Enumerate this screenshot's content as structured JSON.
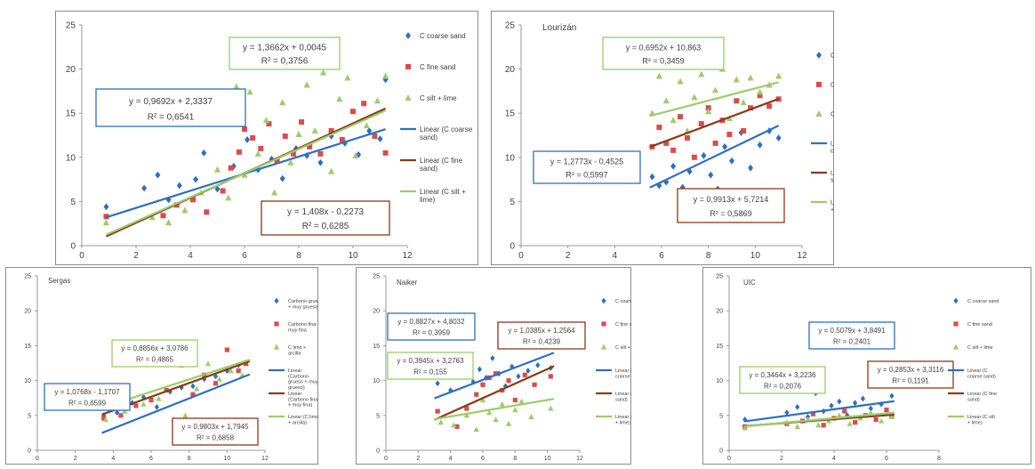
{
  "chart_data": [
    {
      "type": "scatter",
      "title": "",
      "xlim": [
        0,
        12
      ],
      "ylim": [
        0,
        25
      ],
      "xticks": [
        0,
        2,
        4,
        6,
        8,
        10,
        12
      ],
      "yticks": [
        0,
        5,
        10,
        15,
        20,
        25
      ],
      "series": [
        {
          "name": "C coarse sand",
          "color": "#2e6fc1",
          "marker": "diamond",
          "x": [
            0.9,
            2.3,
            2.8,
            3.2,
            3.6,
            4.2,
            4.5,
            5.0,
            5.6,
            6.1,
            6.5,
            7.0,
            7.4,
            7.9,
            8.3,
            8.8,
            9.2,
            9.7,
            10.2,
            10.6,
            11.0,
            11.2
          ],
          "y": [
            4.4,
            6.5,
            8.0,
            5.2,
            6.8,
            7.5,
            10.5,
            6.4,
            9.0,
            12.0,
            8.6,
            9.8,
            7.6,
            11.0,
            10.2,
            9.4,
            12.4,
            11.6,
            10.3,
            13.0,
            12.1,
            18.8
          ]
        },
        {
          "name": "C fine sand",
          "color": "#d94c4c",
          "marker": "square",
          "x": [
            0.9,
            3.0,
            3.5,
            4.1,
            4.6,
            5.2,
            5.5,
            5.8,
            6.0,
            6.3,
            6.6,
            6.9,
            7.2,
            7.5,
            7.8,
            8.1,
            8.4,
            8.8,
            9.2,
            9.6,
            10.0,
            10.4,
            10.8,
            11.2
          ],
          "y": [
            3.3,
            3.4,
            4.6,
            5.2,
            3.8,
            6.2,
            8.8,
            10.6,
            13.2,
            12.2,
            11.0,
            13.8,
            9.6,
            12.4,
            10.4,
            14.0,
            11.2,
            10.4,
            13.0,
            12.0,
            15.2,
            16.1,
            12.4,
            10.5
          ]
        },
        {
          "name": "C silt + lime",
          "color": "#9ccc6a",
          "marker": "triangle",
          "x": [
            0.9,
            2.6,
            3.2,
            3.8,
            4.4,
            5.0,
            5.4,
            5.7,
            6.0,
            6.2,
            6.5,
            6.8,
            7.1,
            7.4,
            7.7,
            8.0,
            8.3,
            8.6,
            8.9,
            9.2,
            9.5,
            9.8,
            10.1,
            10.5,
            10.9,
            11.2
          ],
          "y": [
            2.6,
            3.2,
            2.6,
            4.0,
            6.0,
            8.6,
            5.4,
            18.0,
            8.0,
            17.4,
            10.4,
            14.2,
            6.0,
            16.2,
            9.4,
            12.6,
            18.2,
            13.0,
            19.6,
            8.4,
            16.6,
            19.0,
            10.2,
            13.6,
            16.4,
            19.2
          ]
        },
        {
          "name": "Linear (C coarse sand)",
          "color": "#2e6fc1",
          "line": true,
          "slope": 0.9692,
          "intercept": 2.3337,
          "x_range": [
            0.9,
            11.2
          ]
        },
        {
          "name": "Linear (C fine sand)",
          "color": "#8b3a17",
          "line": true,
          "slope": 1.408,
          "intercept": -0.2273,
          "x_range": [
            0.9,
            11.2
          ]
        },
        {
          "name": "Linear (C silt + lime)",
          "color": "#9ccc6a",
          "line": true,
          "slope": 1.3662,
          "intercept": 0.0045,
          "x_range": [
            0.9,
            11.2
          ]
        }
      ],
      "equations": [
        {
          "line1": "y = 0,9692x + 2,3337",
          "line2": "R² = 0,6541",
          "color": "#2e6fc1"
        },
        {
          "line1": "y = 1,3662x + 0,0045",
          "line2": "R² = 0,3756",
          "color": "#9ccc6a"
        },
        {
          "line1": "y = 1,408x - 0,2273",
          "line2": "R² = 0,6285",
          "color": "#8b3a17"
        }
      ]
    },
    {
      "type": "scatter",
      "title": "Lourizán",
      "xlim": [
        0,
        12
      ],
      "ylim": [
        0,
        25
      ],
      "xticks": [
        0,
        2,
        4,
        6,
        8,
        10,
        12
      ],
      "yticks": [
        0,
        5,
        10,
        15,
        20,
        25
      ],
      "series": [
        {
          "name": "C coarse sand",
          "color": "#2e6fc1",
          "marker": "diamond",
          "x": [
            5.6,
            5.9,
            6.2,
            6.5,
            6.9,
            7.2,
            7.5,
            7.8,
            8.1,
            8.4,
            8.7,
            9.0,
            9.4,
            9.8,
            10.2,
            10.6,
            11.0
          ],
          "y": [
            7.8,
            6.8,
            7.2,
            9.0,
            6.6,
            8.4,
            5.4,
            10.2,
            8.0,
            6.4,
            11.2,
            9.6,
            12.8,
            8.8,
            11.4,
            13.0,
            12.2
          ]
        },
        {
          "name": "C fine sand",
          "color": "#d94c4c",
          "marker": "square",
          "x": [
            5.6,
            5.9,
            6.2,
            6.5,
            6.8,
            7.1,
            7.4,
            7.7,
            8.0,
            8.3,
            8.6,
            8.9,
            9.2,
            9.5,
            9.8,
            10.2,
            10.6,
            11.0
          ],
          "y": [
            11.2,
            13.4,
            11.6,
            10.8,
            14.6,
            12.2,
            10.0,
            13.8,
            15.6,
            11.6,
            14.2,
            12.6,
            16.4,
            13.0,
            15.6,
            17.0,
            15.8,
            16.6
          ]
        },
        {
          "name": "C silt + lime",
          "color": "#9ccc6a",
          "marker": "triangle",
          "x": [
            5.6,
            5.9,
            6.2,
            6.5,
            6.8,
            7.1,
            7.4,
            7.7,
            8.0,
            8.3,
            8.6,
            8.9,
            9.2,
            9.5,
            9.8,
            10.2,
            10.6,
            11.0
          ],
          "y": [
            15.0,
            19.2,
            16.4,
            14.2,
            18.6,
            13.0,
            16.8,
            19.4,
            15.2,
            17.6,
            20.0,
            14.4,
            18.8,
            16.2,
            19.0,
            17.4,
            18.2,
            19.2
          ]
        },
        {
          "name": "Linear (C coarse sand)",
          "color": "#2e6fc1",
          "line": true,
          "slope": 1.2773,
          "intercept": -0.4525,
          "x_range": [
            5.5,
            11.0
          ]
        },
        {
          "name": "Linear (C fine sand)",
          "color": "#8b3a17",
          "line": true,
          "slope": 0.9913,
          "intercept": 5.7214,
          "x_range": [
            5.5,
            11.0
          ]
        },
        {
          "name": "Linear (C silt + lime)",
          "color": "#9ccc6a",
          "line": true,
          "slope": 0.6952,
          "intercept": 10.863,
          "x_range": [
            5.5,
            11.0
          ]
        }
      ],
      "equations": [
        {
          "line1": "y = 0,6952x + 10,863",
          "line2": "R² = 0,3459",
          "color": "#9ccc6a"
        },
        {
          "line1": "y = 1,2773x - 0,4525",
          "line2": "R² = 0,5997",
          "color": "#2e6fc1"
        },
        {
          "line1": "y = 0,9913x + 5,7214",
          "line2": "R² = 0,5869",
          "color": "#8b3a17"
        }
      ]
    },
    {
      "type": "scatter",
      "title": "Sergas",
      "xlim": [
        0,
        12
      ],
      "ylim": [
        0,
        25
      ],
      "xticks": [
        0,
        2,
        4,
        6,
        8,
        10,
        12
      ],
      "yticks": [
        0,
        5,
        10,
        15,
        20,
        25
      ],
      "series": [
        {
          "name": "Carbono grueso + muy grueso",
          "color": "#2e6fc1",
          "marker": "diamond",
          "x": [
            3.5,
            4.2,
            5.0,
            5.6,
            6.3,
            7.0,
            7.6,
            8.2,
            8.8,
            9.4,
            10.0,
            10.6,
            11.0
          ],
          "y": [
            5.0,
            5.4,
            6.8,
            7.6,
            6.2,
            8.4,
            9.0,
            9.2,
            10.2,
            10.6,
            11.4,
            12.2,
            12.6
          ]
        },
        {
          "name": "Carbono fina + muy fina",
          "color": "#d94c4c",
          "marker": "square",
          "x": [
            3.5,
            4.4,
            5.2,
            6.0,
            6.8,
            7.6,
            8.2,
            8.8,
            9.4,
            10.0,
            10.6,
            11.0
          ],
          "y": [
            4.6,
            5.0,
            6.4,
            7.2,
            8.6,
            12.2,
            8.0,
            10.8,
            9.6,
            14.4,
            11.4,
            12.4
          ]
        },
        {
          "name": "C limo + arcilla",
          "color": "#9ccc6a",
          "marker": "triangle",
          "x": [
            3.6,
            4.6,
            5.6,
            6.4,
            7.2,
            7.8,
            8.4,
            9.0,
            9.6,
            10.2,
            10.8
          ],
          "y": [
            4.4,
            5.6,
            6.6,
            7.4,
            4.4,
            5.0,
            8.8,
            12.4,
            10.2,
            11.4,
            10.8
          ]
        },
        {
          "name": "Linear (Carbono grueso + muy grueso)",
          "color": "#2e6fc1",
          "line": true,
          "slope": 1.0768,
          "intercept": -1.1707,
          "x_range": [
            3.4,
            11.2
          ]
        },
        {
          "name": "Linear (Carbono fina + muy fina)",
          "color": "#8b3a17",
          "line": true,
          "slope": 0.9803,
          "intercept": 1.7945,
          "x_range": [
            3.4,
            11.2
          ]
        },
        {
          "name": "Linear (C limo + arcilla)",
          "color": "#9ccc6a",
          "line": true,
          "slope": 0.8856,
          "intercept": 3.0786,
          "x_range": [
            3.4,
            11.2
          ]
        }
      ],
      "equations": [
        {
          "line1": "y = 0,8856x + 3,0786",
          "line2": "R² = 0,4865",
          "color": "#9ccc6a"
        },
        {
          "line1": "y = 1,0768x - 1,1707",
          "line2": "R² = 0,6599",
          "color": "#2e6fc1"
        },
        {
          "line1": "y = 0,9803x + 1,7945",
          "line2": "R² = 0,6858",
          "color": "#8b3a17"
        }
      ]
    },
    {
      "type": "scatter",
      "title": "Naiker",
      "xlim": [
        0,
        12
      ],
      "ylim": [
        0,
        25
      ],
      "xticks": [
        0,
        2,
        4,
        6,
        8,
        10,
        12
      ],
      "yticks": [
        0,
        5,
        10,
        15,
        20,
        25
      ],
      "series": [
        {
          "name": "C coarse sand",
          "color": "#2e6fc1",
          "marker": "diamond",
          "x": [
            3.2,
            4.0,
            4.6,
            5.0,
            5.4,
            5.8,
            6.2,
            6.6,
            7.0,
            7.4,
            7.8,
            8.2,
            8.8,
            9.4,
            10.2
          ],
          "y": [
            9.6,
            8.6,
            10.8,
            12.6,
            9.8,
            11.6,
            10.4,
            13.2,
            11.0,
            9.2,
            12.0,
            10.6,
            11.4,
            12.2,
            11.8
          ]
        },
        {
          "name": "C fine sand",
          "color": "#d94c4c",
          "marker": "square",
          "x": [
            3.2,
            4.4,
            5.0,
            5.6,
            6.0,
            6.4,
            6.8,
            7.2,
            7.6,
            8.0,
            8.6,
            9.2,
            10.2
          ],
          "y": [
            5.6,
            3.4,
            6.0,
            8.0,
            9.4,
            10.4,
            11.0,
            8.6,
            10.0,
            7.2,
            10.8,
            9.4,
            10.6
          ]
        },
        {
          "name": "C silt + lime",
          "color": "#9ccc6a",
          "marker": "triangle",
          "x": [
            3.4,
            4.2,
            5.0,
            5.6,
            6.0,
            6.4,
            6.8,
            7.2,
            7.6,
            8.0,
            8.4,
            9.0,
            10.2
          ],
          "y": [
            4.0,
            3.6,
            5.0,
            3.0,
            7.2,
            5.4,
            4.4,
            6.6,
            3.8,
            5.8,
            7.0,
            4.8,
            6.0
          ]
        },
        {
          "name": "Linear (C coarse sand)",
          "color": "#2e6fc1",
          "line": true,
          "slope": 0.8827,
          "intercept": 4.8032,
          "x_range": [
            3.0,
            10.4
          ]
        },
        {
          "name": "Linear (C fine sand)",
          "color": "#8b3a17",
          "line": true,
          "slope": 1.0385,
          "intercept": 1.2564,
          "x_range": [
            3.0,
            10.4
          ]
        },
        {
          "name": "Linear (C silt + lime)",
          "color": "#9ccc6a",
          "line": true,
          "slope": 0.3945,
          "intercept": 3.2763,
          "x_range": [
            3.0,
            10.4
          ]
        }
      ],
      "equations": [
        {
          "line1": "y = 0,8827x + 4,8032",
          "line2": "R² = 0,3959",
          "color": "#2e6fc1"
        },
        {
          "line1": "y = 1,0385x + 1,2564",
          "line2": "R² = 0,4239",
          "color": "#8b3a17"
        },
        {
          "line1": "y = 0,3945x + 3,2763",
          "line2": "R² = 0,155",
          "color": "#9ccc6a"
        }
      ]
    },
    {
      "type": "scatter",
      "title": "UIC",
      "xlim": [
        0,
        8
      ],
      "ylim": [
        0,
        25
      ],
      "xticks": [
        0,
        2,
        4,
        6,
        8
      ],
      "yticks": [
        0,
        5,
        10,
        15,
        20,
        25
      ],
      "series": [
        {
          "name": "C coarse sand",
          "color": "#2e6fc1",
          "marker": "diamond",
          "x": [
            0.6,
            2.2,
            2.6,
            3.0,
            3.3,
            3.6,
            3.9,
            4.2,
            4.5,
            4.8,
            5.1,
            5.4,
            5.8,
            6.2
          ],
          "y": [
            4.4,
            5.4,
            6.2,
            4.8,
            8.2,
            5.6,
            6.4,
            7.0,
            5.0,
            6.8,
            7.4,
            6.0,
            6.6,
            7.8
          ]
        },
        {
          "name": "C fine sand",
          "color": "#d94c4c",
          "marker": "square",
          "x": [
            0.6,
            2.2,
            2.8,
            3.2,
            3.6,
            4.0,
            4.4,
            4.8,
            5.2,
            5.6,
            6.0,
            6.2
          ],
          "y": [
            3.4,
            3.8,
            4.2,
            5.2,
            3.6,
            4.6,
            5.6,
            4.0,
            5.0,
            4.4,
            5.8,
            4.8
          ]
        },
        {
          "name": "C silt + lime",
          "color": "#9ccc6a",
          "marker": "triangle",
          "x": [
            0.6,
            2.2,
            2.6,
            3.0,
            3.4,
            3.8,
            4.2,
            4.6,
            5.0,
            5.4,
            5.8,
            6.2
          ],
          "y": [
            3.2,
            4.0,
            3.4,
            4.4,
            3.6,
            4.2,
            5.0,
            3.8,
            4.6,
            5.4,
            4.2,
            4.8
          ]
        },
        {
          "name": "Linear (C coarse sand)",
          "color": "#2e6fc1",
          "line": true,
          "slope": 0.5079,
          "intercept": 3.8491,
          "x_range": [
            0.6,
            6.3
          ]
        },
        {
          "name": "Linear (C fine sand)",
          "color": "#8b3a17",
          "line": true,
          "slope": 0.2853,
          "intercept": 3.3116,
          "x_range": [
            0.6,
            6.3
          ]
        },
        {
          "name": "Linear (C silt + lime)",
          "color": "#9ccc6a",
          "line": true,
          "slope": 0.3464,
          "intercept": 3.2236,
          "x_range": [
            0.6,
            6.3
          ]
        }
      ],
      "equations": [
        {
          "line1": "y = 0,5079x + 3,8491",
          "line2": "R² = 0,2401",
          "color": "#2e6fc1"
        },
        {
          "line1": "y = 0,3464x + 3,2236",
          "line2": "R² = 0,2076",
          "color": "#9ccc6a"
        },
        {
          "line1": "y = 0,2853x + 3,3116",
          "line2": "R² = 0,1191",
          "color": "#8b3a17"
        }
      ]
    }
  ]
}
